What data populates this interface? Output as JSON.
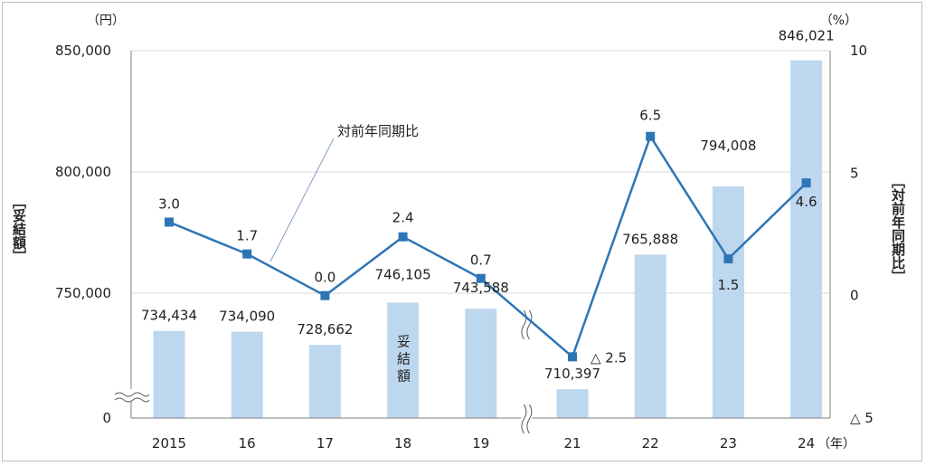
{
  "chart_data": {
    "type": "bar+line",
    "categories": [
      "2015",
      "16",
      "17",
      "18",
      "19",
      "21",
      "22",
      "23",
      "24"
    ],
    "series": [
      {
        "name": "妥結額",
        "type": "bar",
        "axis": "left",
        "values": [
          734434,
          734090,
          728662,
          746105,
          743588,
          710397,
          765888,
          794008,
          846021
        ],
        "labels": [
          "734,434",
          "734,090",
          "728,662",
          "746,105",
          "743,588",
          "710,397",
          "765,888",
          "794,008",
          "846,021"
        ]
      },
      {
        "name": "対前年同期比",
        "type": "line",
        "axis": "right",
        "values": [
          3.0,
          1.7,
          0.0,
          2.4,
          0.7,
          -2.5,
          6.5,
          1.5,
          4.6
        ],
        "labels": [
          "3.0",
          "1.7",
          "0.0",
          "2.4",
          "0.7",
          "△ 2.5",
          "6.5",
          "1.5",
          "4.6"
        ]
      }
    ],
    "left_axis": {
      "unit": "（円）",
      "label": "［妥結額］",
      "ticks": [
        {
          "value": 850000,
          "label": "850,000"
        },
        {
          "value": 800000,
          "label": "800,000"
        },
        {
          "value": 750000,
          "label": "750,000"
        },
        {
          "value": 0,
          "label": "0"
        }
      ],
      "broken": true,
      "break_range": [
        0,
        700000
      ],
      "ylim": [
        700000,
        850000
      ]
    },
    "right_axis": {
      "unit": "（%）",
      "label": "［対前年同期比］",
      "ticks": [
        {
          "value": 10,
          "label": "10"
        },
        {
          "value": 5,
          "label": "5"
        },
        {
          "value": 0,
          "label": "0"
        },
        {
          "value": -5,
          "label": "△ 5"
        }
      ],
      "ylim": [
        -5,
        10
      ]
    },
    "x_unit": "（年）",
    "x_axis_break_between": [
      "19",
      "21"
    ],
    "annotations": [
      {
        "text": "対前年同期比",
        "target_series": "対前年同期比"
      }
    ],
    "bar_inner_label": "妥結額",
    "grid": "horizontal",
    "colors": {
      "bar": "#bdd7ee",
      "line": "#2e75b6",
      "grid": "#d9d9d9",
      "axis": "#7f7f7f"
    }
  }
}
